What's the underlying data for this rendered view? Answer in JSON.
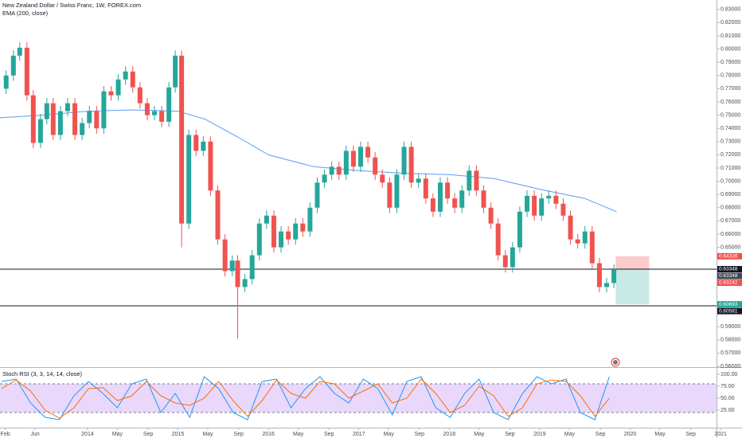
{
  "chart_data": [
    {
      "type": "candlestick",
      "title": "New Zealand Dollar / Swiss Franc, 1W, FOREX.com",
      "indicator_label": "EMA (200, close)",
      "x": [
        2013.1,
        2013.18,
        2013.25,
        2013.33,
        2013.4,
        2013.48,
        2013.55,
        2013.62,
        2013.7,
        2013.78,
        2013.86,
        2013.94,
        2014.02,
        2014.1,
        2014.18,
        2014.26,
        2014.34,
        2014.42,
        2014.5,
        2014.58,
        2014.66,
        2014.74,
        2014.82,
        2014.9,
        2014.97,
        2015.04,
        2015.12,
        2015.2,
        2015.28,
        2015.36,
        2015.44,
        2015.52,
        2015.6,
        2015.66,
        2015.74,
        2015.82,
        2015.9,
        2015.98,
        2016.06,
        2016.14,
        2016.22,
        2016.3,
        2016.38,
        2016.46,
        2016.54,
        2016.62,
        2016.7,
        2016.78,
        2016.86,
        2016.94,
        2017.02,
        2017.1,
        2017.18,
        2017.26,
        2017.34,
        2017.42,
        2017.5,
        2017.58,
        2017.66,
        2017.74,
        2017.82,
        2017.9,
        2017.98,
        2018.06,
        2018.14,
        2018.22,
        2018.3,
        2018.38,
        2018.46,
        2018.54,
        2018.62,
        2018.7,
        2018.78,
        2018.86,
        2018.94,
        2019.02,
        2019.1,
        2019.18,
        2019.26,
        2019.34,
        2019.42,
        2019.5,
        2019.58,
        2019.66,
        2019.74,
        2019.82
      ],
      "open": [
        0.77,
        0.78,
        0.795,
        0.801,
        0.765,
        0.729,
        0.747,
        0.759,
        0.735,
        0.753,
        0.759,
        0.735,
        0.744,
        0.753,
        0.74,
        0.768,
        0.765,
        0.777,
        0.783,
        0.771,
        0.759,
        0.75,
        0.753,
        0.745,
        0.771,
        0.795,
        0.668,
        0.735,
        0.723,
        0.73,
        0.693,
        0.656,
        0.632,
        0.64,
        0.62,
        0.626,
        0.644,
        0.668,
        0.674,
        0.65,
        0.662,
        0.656,
        0.668,
        0.662,
        0.68,
        0.699,
        0.705,
        0.711,
        0.705,
        0.723,
        0.711,
        0.726,
        0.718,
        0.705,
        0.699,
        0.68,
        0.705,
        0.726,
        0.699,
        0.702,
        0.687,
        0.677,
        0.699,
        0.687,
        0.68,
        0.693,
        0.708,
        0.693,
        0.68,
        0.668,
        0.644,
        0.635,
        0.65,
        0.677,
        0.689,
        0.674,
        0.687,
        0.689,
        0.683,
        0.674,
        0.656,
        0.653,
        0.662,
        0.638,
        0.62,
        0.623
      ],
      "high": [
        0.784,
        0.799,
        0.805,
        0.805,
        0.769,
        0.751,
        0.763,
        0.763,
        0.757,
        0.763,
        0.763,
        0.748,
        0.757,
        0.757,
        0.772,
        0.772,
        0.781,
        0.787,
        0.787,
        0.775,
        0.763,
        0.757,
        0.757,
        0.775,
        0.799,
        0.799,
        0.739,
        0.739,
        0.734,
        0.734,
        0.697,
        0.66,
        0.644,
        0.644,
        0.63,
        0.648,
        0.672,
        0.678,
        0.678,
        0.666,
        0.666,
        0.672,
        0.672,
        0.684,
        0.703,
        0.709,
        0.715,
        0.715,
        0.727,
        0.727,
        0.73,
        0.73,
        0.722,
        0.709,
        0.703,
        0.709,
        0.73,
        0.73,
        0.706,
        0.706,
        0.691,
        0.703,
        0.703,
        0.691,
        0.697,
        0.712,
        0.712,
        0.697,
        0.684,
        0.672,
        0.648,
        0.654,
        0.681,
        0.693,
        0.693,
        0.691,
        0.693,
        0.693,
        0.687,
        0.678,
        0.66,
        0.666,
        0.666,
        0.642,
        0.627,
        0.637
      ],
      "low": [
        0.766,
        0.776,
        0.791,
        0.761,
        0.725,
        0.725,
        0.743,
        0.731,
        0.731,
        0.749,
        0.731,
        0.731,
        0.74,
        0.736,
        0.736,
        0.761,
        0.761,
        0.773,
        0.767,
        0.755,
        0.746,
        0.746,
        0.741,
        0.741,
        0.767,
        0.65,
        0.664,
        0.719,
        0.719,
        0.689,
        0.652,
        0.628,
        0.628,
        0.581,
        0.616,
        0.622,
        0.64,
        0.664,
        0.646,
        0.646,
        0.652,
        0.652,
        0.658,
        0.658,
        0.676,
        0.695,
        0.701,
        0.701,
        0.701,
        0.707,
        0.707,
        0.714,
        0.701,
        0.695,
        0.676,
        0.676,
        0.701,
        0.695,
        0.695,
        0.683,
        0.673,
        0.673,
        0.683,
        0.676,
        0.676,
        0.689,
        0.689,
        0.676,
        0.664,
        0.64,
        0.631,
        0.631,
        0.646,
        0.673,
        0.67,
        0.67,
        0.683,
        0.679,
        0.67,
        0.652,
        0.649,
        0.649,
        0.634,
        0.616,
        0.616,
        0.619
      ],
      "close": [
        0.78,
        0.795,
        0.801,
        0.765,
        0.729,
        0.747,
        0.759,
        0.735,
        0.753,
        0.759,
        0.735,
        0.744,
        0.753,
        0.74,
        0.768,
        0.765,
        0.777,
        0.783,
        0.771,
        0.759,
        0.75,
        0.753,
        0.745,
        0.771,
        0.795,
        0.668,
        0.735,
        0.723,
        0.73,
        0.693,
        0.656,
        0.632,
        0.64,
        0.62,
        0.626,
        0.644,
        0.668,
        0.674,
        0.65,
        0.662,
        0.656,
        0.668,
        0.662,
        0.68,
        0.699,
        0.705,
        0.711,
        0.705,
        0.723,
        0.711,
        0.726,
        0.718,
        0.705,
        0.699,
        0.68,
        0.705,
        0.726,
        0.699,
        0.702,
        0.687,
        0.677,
        0.699,
        0.687,
        0.68,
        0.693,
        0.708,
        0.693,
        0.68,
        0.668,
        0.644,
        0.635,
        0.65,
        0.677,
        0.689,
        0.674,
        0.687,
        0.689,
        0.683,
        0.674,
        0.656,
        0.653,
        0.662,
        0.638,
        0.62,
        0.623,
        0.633
      ],
      "up_color": "#26a69a",
      "down_color": "#ef5350",
      "ema": {
        "color": "#5b9cf6",
        "x": [
          2013.03,
          2013.5,
          2014.0,
          2014.5,
          2015.0,
          2015.3,
          2015.7,
          2016.0,
          2016.5,
          2017.0,
          2017.5,
          2018.0,
          2018.5,
          2019.0,
          2019.5,
          2019.85
        ],
        "values": [
          0.748,
          0.75,
          0.753,
          0.754,
          0.753,
          0.747,
          0.732,
          0.72,
          0.711,
          0.708,
          0.706,
          0.705,
          0.702,
          0.694,
          0.687,
          0.677
        ]
      },
      "hlines": [
        0.63348,
        0.60581
      ],
      "position": {
        "x": [
          2019.84,
          2020.21
        ],
        "stop": 0.64326,
        "entry": 0.63348,
        "target": 0.60693
      },
      "price_tags": [
        {
          "value": 0.64326,
          "color": "#ef5350"
        },
        {
          "value": 0.63348,
          "color": "#131722"
        },
        {
          "value": 0.63348,
          "color": "#434651"
        },
        {
          "value": 0.63242,
          "color": "#ef5350"
        },
        {
          "value": 0.60693,
          "color": "#26a69a"
        },
        {
          "value": 0.60581,
          "color": "#131722"
        }
      ],
      "xlim": [
        2013.032,
        2020.955
      ],
      "ylim": [
        0.5594,
        0.8371
      ],
      "yticks": [
        {
          "value": 0.83,
          "label": "0.83000"
        },
        {
          "value": 0.82,
          "label": "0.82000"
        },
        {
          "value": 0.81,
          "label": "0.81000"
        },
        {
          "value": 0.8,
          "label": "0.80000"
        },
        {
          "value": 0.79,
          "label": "0.79000"
        },
        {
          "value": 0.78,
          "label": "0.78000"
        },
        {
          "value": 0.77,
          "label": "0.77000"
        },
        {
          "value": 0.76,
          "label": "0.76000"
        },
        {
          "value": 0.75,
          "label": "0.75000"
        },
        {
          "value": 0.74,
          "label": "0.74000"
        },
        {
          "value": 0.73,
          "label": "0.73000"
        },
        {
          "value": 0.72,
          "label": "0.72000"
        },
        {
          "value": 0.71,
          "label": "0.71000"
        },
        {
          "value": 0.7,
          "label": "0.70000"
        },
        {
          "value": 0.69,
          "label": "0.69000"
        },
        {
          "value": 0.68,
          "label": "0.68000"
        },
        {
          "value": 0.67,
          "label": "0.67000"
        },
        {
          "value": 0.66,
          "label": "0.66000"
        },
        {
          "value": 0.65,
          "label": "0.65000"
        },
        {
          "value": 0.59,
          "label": "0.59000"
        },
        {
          "value": 0.58,
          "label": "0.58000"
        },
        {
          "value": 0.57,
          "label": "0.57000"
        },
        {
          "value": 0.56,
          "label": "0.56000"
        }
      ]
    },
    {
      "type": "line",
      "title": "Stoch RSI (3, 3, 14, 14, close)",
      "x": [
        2013.05,
        2013.21,
        2013.37,
        2013.53,
        2013.69,
        2013.85,
        2014.01,
        2014.17,
        2014.33,
        2014.49,
        2014.65,
        2014.81,
        2014.97,
        2015.13,
        2015.29,
        2015.45,
        2015.61,
        2015.77,
        2015.93,
        2016.09,
        2016.25,
        2016.41,
        2016.57,
        2016.73,
        2016.89,
        2017.05,
        2017.21,
        2017.37,
        2017.53,
        2017.69,
        2017.85,
        2018.01,
        2018.17,
        2018.33,
        2018.49,
        2018.65,
        2018.81,
        2018.97,
        2019.13,
        2019.29,
        2019.45,
        2019.61,
        2019.77
      ],
      "series": [
        {
          "color": "#2196f3",
          "values": [
            85,
            90,
            40,
            10,
            5,
            55,
            85,
            60,
            30,
            80,
            90,
            20,
            60,
            10,
            95,
            70,
            20,
            5,
            85,
            90,
            30,
            70,
            95,
            60,
            40,
            90,
            70,
            15,
            85,
            95,
            30,
            10,
            60,
            90,
            20,
            5,
            60,
            95,
            80,
            90,
            20,
            5,
            95
          ]
        },
        {
          "color": "#ff6d00",
          "values": [
            70,
            88,
            65,
            25,
            8,
            30,
            70,
            72,
            45,
            55,
            85,
            55,
            40,
            35,
            50,
            85,
            45,
            12,
            45,
            88,
            60,
            50,
            85,
            80,
            50,
            65,
            80,
            40,
            50,
            90,
            60,
            20,
            35,
            75,
            55,
            12,
            30,
            80,
            88,
            85,
            55,
            12,
            50
          ]
        }
      ],
      "band": [
        20,
        80
      ],
      "band_color": "#e9d8fb",
      "xlim": [
        2013.032,
        2020.955
      ],
      "ylim": [
        -11.7,
        113.3
      ],
      "yticks": [
        {
          "value": 100,
          "label": "100.00"
        },
        {
          "value": 75,
          "label": "75.00"
        },
        {
          "value": 50,
          "label": "50.00"
        },
        {
          "value": 25,
          "label": "25.00"
        }
      ],
      "xticks": [
        {
          "value": 2013.09,
          "label": "Feb"
        },
        {
          "value": 2013.42,
          "label": "Jun"
        },
        {
          "value": 2014.0,
          "label": "2014"
        },
        {
          "value": 2014.33,
          "label": "May"
        },
        {
          "value": 2014.67,
          "label": "Sep"
        },
        {
          "value": 2015.0,
          "label": "2015"
        },
        {
          "value": 2015.33,
          "label": "May"
        },
        {
          "value": 2015.67,
          "label": "Sep"
        },
        {
          "value": 2016.0,
          "label": "2016"
        },
        {
          "value": 2016.33,
          "label": "May"
        },
        {
          "value": 2016.67,
          "label": "Sep"
        },
        {
          "value": 2017.0,
          "label": "2017"
        },
        {
          "value": 2017.33,
          "label": "May"
        },
        {
          "value": 2017.67,
          "label": "Sep"
        },
        {
          "value": 2018.0,
          "label": "2018"
        },
        {
          "value": 2018.33,
          "label": "May"
        },
        {
          "value": 2018.67,
          "label": "Sep"
        },
        {
          "value": 2019.0,
          "label": "2019"
        },
        {
          "value": 2019.33,
          "label": "May"
        },
        {
          "value": 2019.67,
          "label": "Sep"
        },
        {
          "value": 2020.0,
          "label": "2020"
        },
        {
          "value": 2020.33,
          "label": "May"
        },
        {
          "value": 2020.67,
          "label": "Sep"
        },
        {
          "value": 2021.0,
          "label": "2021"
        }
      ]
    }
  ]
}
